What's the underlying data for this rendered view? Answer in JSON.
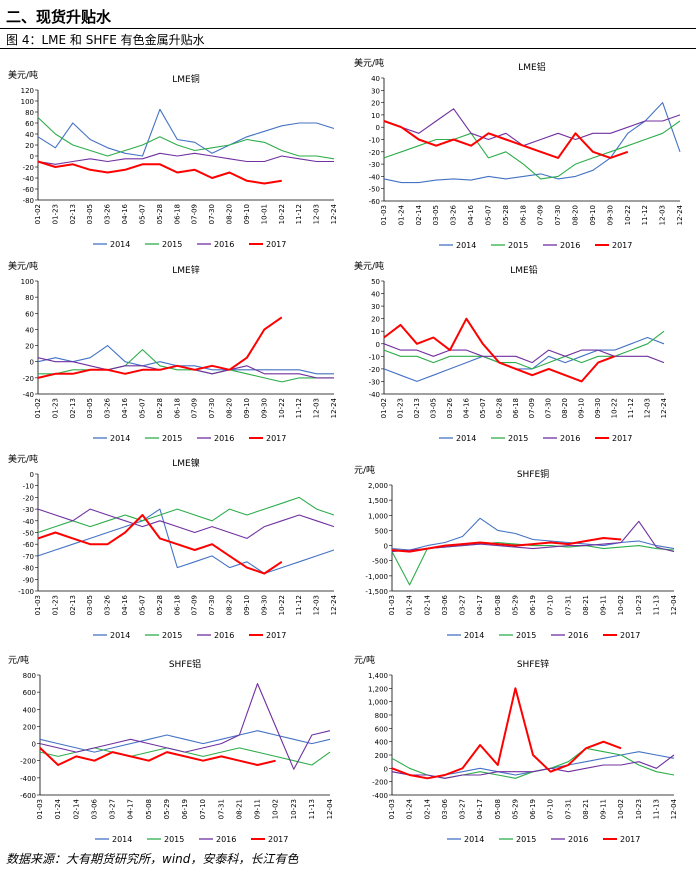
{
  "header": {
    "section_title": "二、现货升贴水",
    "figure_caption": "图 4：LME 和 SHFE 有色金属升贴水"
  },
  "footer": {
    "source": "数据来源：大有期货研究所，wind，安泰科，长江有色"
  },
  "colors": {
    "2014": "#4472C4",
    "2015": "#2EAD4B",
    "2016": "#7030A0",
    "2017": "#FF0000"
  },
  "legend_labels": [
    "2014",
    "2015",
    "2016",
    "2017"
  ],
  "chart_data": [
    {
      "type": "line",
      "title": "LME铜",
      "ylabel": "美元/吨",
      "ylim": [
        -80,
        120
      ],
      "yticks": [
        -80,
        -60,
        -40,
        -20,
        0,
        20,
        40,
        60,
        80,
        100,
        120
      ],
      "categories": [
        "01-02",
        "01-23",
        "02-13",
        "03-05",
        "03-26",
        "04-16",
        "05-07",
        "05-28",
        "06-18",
        "07-09",
        "07-30",
        "08-20",
        "09-10",
        "10-01",
        "10-22",
        "11-12",
        "12-03",
        "12-24"
      ],
      "series": [
        {
          "name": "2014",
          "values": [
            35,
            15,
            60,
            30,
            15,
            5,
            0,
            85,
            30,
            25,
            5,
            20,
            35,
            45,
            55,
            60,
            60,
            50
          ]
        },
        {
          "name": "2015",
          "values": [
            70,
            40,
            20,
            10,
            0,
            10,
            20,
            35,
            20,
            10,
            15,
            20,
            30,
            25,
            10,
            0,
            0,
            -5
          ]
        },
        {
          "name": "2016",
          "values": [
            -10,
            -15,
            -10,
            -5,
            -10,
            -5,
            -5,
            5,
            0,
            5,
            0,
            -5,
            -10,
            -10,
            0,
            -5,
            -10,
            -10
          ]
        },
        {
          "name": "2017",
          "values": [
            -10,
            -20,
            -15,
            -25,
            -30,
            -25,
            -15,
            -15,
            -30,
            -25,
            -40,
            -30,
            -45,
            -50,
            -45,
            null,
            null,
            null
          ]
        }
      ]
    },
    {
      "type": "line",
      "title": "LME铝",
      "ylabel": "美元/吨",
      "ylim": [
        -60,
        40
      ],
      "yticks": [
        -60,
        -50,
        -40,
        -30,
        -20,
        -10,
        0,
        10,
        20,
        30,
        40
      ],
      "categories": [
        "01-03",
        "01-24",
        "02-14",
        "03-05",
        "03-26",
        "04-16",
        "05-07",
        "05-28",
        "06-18",
        "07-09",
        "07-30",
        "08-20",
        "09-10",
        "09-30",
        "10-22",
        "11-12",
        "12-03",
        "12-24"
      ],
      "series": [
        {
          "name": "2014",
          "values": [
            -42,
            -45,
            -45,
            -43,
            -42,
            -43,
            -40,
            -42,
            -40,
            -38,
            -42,
            -40,
            -35,
            -25,
            -5,
            5,
            20,
            -20
          ]
        },
        {
          "name": "2015",
          "values": [
            -25,
            -20,
            -15,
            -10,
            -10,
            -5,
            -25,
            -20,
            -30,
            -42,
            -40,
            -30,
            -25,
            -20,
            -15,
            -10,
            -5,
            5
          ]
        },
        {
          "name": "2016",
          "values": [
            5,
            0,
            -5,
            5,
            15,
            -5,
            -10,
            -5,
            -15,
            -10,
            -5,
            -10,
            -5,
            -5,
            0,
            5,
            5,
            10
          ]
        },
        {
          "name": "2017",
          "values": [
            5,
            0,
            -10,
            -15,
            -10,
            -15,
            -5,
            -10,
            -15,
            -20,
            -25,
            -5,
            -20,
            -25,
            -20,
            null,
            null,
            null
          ]
        }
      ]
    },
    {
      "type": "line",
      "title": "LME锌",
      "ylabel": "美元/吨",
      "ylim": [
        -40,
        100
      ],
      "yticks": [
        -40,
        -20,
        0,
        20,
        40,
        60,
        80,
        100
      ],
      "categories": [
        "01-02",
        "01-23",
        "02-13",
        "03-05",
        "03-26",
        "04-16",
        "05-07",
        "05-28",
        "06-18",
        "07-09",
        "07-30",
        "08-20",
        "09-10",
        "09-30",
        "10-22",
        "11-12",
        "12-03",
        "12-24"
      ],
      "series": [
        {
          "name": "2014",
          "values": [
            0,
            5,
            0,
            5,
            20,
            0,
            -5,
            0,
            -5,
            -5,
            -10,
            -10,
            -10,
            -10,
            -10,
            -10,
            -15,
            -15
          ]
        },
        {
          "name": "2015",
          "values": [
            -15,
            -15,
            -10,
            -10,
            -10,
            -5,
            15,
            -5,
            -10,
            -10,
            -15,
            -10,
            -15,
            -20,
            -25,
            -20,
            -20,
            -20
          ]
        },
        {
          "name": "2016",
          "values": [
            5,
            0,
            0,
            -5,
            -10,
            -5,
            -5,
            -10,
            -5,
            -10,
            -15,
            -10,
            -5,
            -15,
            -15,
            -15,
            -20,
            -20
          ]
        },
        {
          "name": "2017",
          "values": [
            -20,
            -15,
            -15,
            -10,
            -10,
            -15,
            -10,
            -10,
            -5,
            -10,
            -5,
            -10,
            5,
            40,
            55,
            null,
            null,
            null
          ]
        }
      ]
    },
    {
      "type": "line",
      "title": "LME铅",
      "ylabel": "美元/吨",
      "ylim": [
        -40,
        50
      ],
      "yticks": [
        -40,
        -30,
        -20,
        -10,
        0,
        10,
        20,
        30,
        40,
        50
      ],
      "categories": [
        "01-02",
        "01-23",
        "02-13",
        "03-05",
        "03-26",
        "04-16",
        "05-07",
        "05-28",
        "06-18",
        "07-09",
        "07-30",
        "08-20",
        "09-10",
        "09-30",
        "10-22",
        "11-12",
        "12-03",
        "12-24"
      ],
      "series": [
        {
          "name": "2014",
          "values": [
            -20,
            -25,
            -30,
            -25,
            -20,
            -15,
            -10,
            -15,
            -20,
            -20,
            -10,
            -15,
            -10,
            -5,
            -5,
            0,
            5,
            0
          ]
        },
        {
          "name": "2015",
          "values": [
            -5,
            -10,
            -10,
            -15,
            -10,
            -10,
            -10,
            -15,
            -15,
            -20,
            -15,
            -10,
            -15,
            -10,
            -10,
            -5,
            0,
            10
          ]
        },
        {
          "name": "2016",
          "values": [
            0,
            -5,
            -5,
            -10,
            -5,
            -5,
            -10,
            -10,
            -10,
            -15,
            -5,
            -10,
            -5,
            -5,
            -10,
            -10,
            -10,
            -15
          ]
        },
        {
          "name": "2017",
          "values": [
            5,
            15,
            0,
            5,
            -5,
            20,
            0,
            -15,
            -20,
            -25,
            -20,
            -25,
            -30,
            -15,
            -10,
            null,
            null,
            null
          ]
        }
      ]
    },
    {
      "type": "line",
      "title": "LME镍",
      "ylabel": "美元/吨",
      "ylim": [
        -100,
        0
      ],
      "yticks": [
        -100,
        -90,
        -80,
        -70,
        -60,
        -50,
        -40,
        -30,
        -20,
        -10,
        0
      ],
      "categories": [
        "01-03",
        "01-23",
        "02-13",
        "03-05",
        "03-26",
        "04-16",
        "05-07",
        "05-28",
        "06-18",
        "07-09",
        "07-30",
        "08-20",
        "09-10",
        "09-30",
        "10-22",
        "11-12",
        "12-03",
        "12-24"
      ],
      "series": [
        {
          "name": "2014",
          "values": [
            -70,
            -65,
            -60,
            -55,
            -50,
            -45,
            -40,
            -30,
            -80,
            -75,
            -70,
            -80,
            -75,
            -85,
            -80,
            -75,
            -70,
            -65
          ]
        },
        {
          "name": "2015",
          "values": [
            -50,
            -45,
            -40,
            -45,
            -40,
            -35,
            -40,
            -35,
            -30,
            -35,
            -40,
            -30,
            -35,
            -30,
            -25,
            -20,
            -30,
            -35
          ]
        },
        {
          "name": "2016",
          "values": [
            -30,
            -35,
            -40,
            -30,
            -35,
            -40,
            -45,
            -40,
            -45,
            -50,
            -45,
            -50,
            -55,
            -45,
            -40,
            -35,
            -40,
            -45
          ]
        },
        {
          "name": "2017",
          "values": [
            -55,
            -50,
            -55,
            -60,
            -60,
            -50,
            -35,
            -55,
            -60,
            -65,
            -60,
            -70,
            -80,
            -85,
            -75,
            null,
            null,
            null
          ]
        }
      ]
    },
    {
      "type": "line",
      "title": "SHFE铜",
      "ylabel": "元/吨",
      "ylim": [
        -1500,
        2000
      ],
      "yticks": [
        -1500,
        -1000,
        -500,
        0,
        500,
        1000,
        1500,
        2000
      ],
      "yticklabels": [
        "-1,500",
        "-1,000",
        "-500",
        "0",
        "500",
        "1,000",
        "1,500",
        "2,000"
      ],
      "categories": [
        "01-03",
        "01-24",
        "02-14",
        "03-06",
        "03-27",
        "04-17",
        "05-08",
        "05-29",
        "06-19",
        "07-10",
        "07-31",
        "08-21",
        "09-11",
        "10-02",
        "10-23",
        "11-13",
        "12-04"
      ],
      "series": [
        {
          "name": "2014",
          "values": [
            -100,
            -150,
            0,
            100,
            300,
            900,
            500,
            400,
            200,
            150,
            100,
            50,
            0,
            100,
            150,
            0,
            -100
          ]
        },
        {
          "name": "2015",
          "values": [
            -200,
            -1300,
            -100,
            -50,
            0,
            50,
            100,
            50,
            0,
            0,
            -50,
            0,
            -100,
            -50,
            0,
            -100,
            -150
          ]
        },
        {
          "name": "2016",
          "values": [
            -200,
            -150,
            -100,
            -50,
            0,
            50,
            0,
            -50,
            -100,
            -50,
            0,
            0,
            50,
            100,
            800,
            -50,
            -200
          ]
        },
        {
          "name": "2017",
          "values": [
            -150,
            -200,
            -100,
            0,
            50,
            100,
            50,
            0,
            50,
            100,
            50,
            150,
            250,
            200,
            null,
            null,
            null
          ]
        }
      ]
    },
    {
      "type": "line",
      "title": "SHFE铝",
      "ylabel": "元/吨",
      "ylim": [
        -600,
        800
      ],
      "yticks": [
        -600,
        -400,
        -200,
        0,
        200,
        400,
        600,
        800
      ],
      "categories": [
        "01-03",
        "01-24",
        "02-14",
        "03-06",
        "03-27",
        "04-17",
        "05-08",
        "05-29",
        "06-19",
        "07-10",
        "07-31",
        "08-21",
        "09-11",
        "10-02",
        "10-23",
        "11-13",
        "12-04"
      ],
      "series": [
        {
          "name": "2014",
          "values": [
            50,
            0,
            -50,
            -100,
            -50,
            0,
            50,
            100,
            50,
            0,
            50,
            100,
            150,
            100,
            50,
            0,
            50
          ]
        },
        {
          "name": "2015",
          "values": [
            -100,
            -150,
            -100,
            -50,
            -100,
            -150,
            -100,
            -50,
            -100,
            -150,
            -100,
            -50,
            -100,
            -150,
            -200,
            -250,
            -100
          ]
        },
        {
          "name": "2016",
          "values": [
            0,
            -50,
            -100,
            -50,
            0,
            50,
            0,
            -50,
            -100,
            -50,
            0,
            100,
            700,
            200,
            -300,
            100,
            150
          ]
        },
        {
          "name": "2017",
          "values": [
            -50,
            -250,
            -150,
            -200,
            -100,
            -150,
            -200,
            -100,
            -150,
            -200,
            -150,
            -200,
            -250,
            -200,
            null,
            null,
            null
          ]
        }
      ]
    },
    {
      "type": "line",
      "title": "SHFE锌",
      "ylabel": "元/吨",
      "ylim": [
        -400,
        1400
      ],
      "yticks": [
        -400,
        -200,
        0,
        200,
        400,
        600,
        800,
        1000,
        1200,
        1400
      ],
      "yticklabels": [
        "-400",
        "-200",
        "0",
        "200",
        "400",
        "600",
        "800",
        "1,000",
        "1,200",
        "1,400"
      ],
      "categories": [
        "01-03",
        "01-24",
        "02-14",
        "03-06",
        "03-27",
        "04-17",
        "05-08",
        "05-29",
        "06-19",
        "07-10",
        "07-31",
        "08-21",
        "09-11",
        "10-02",
        "10-23",
        "11-13",
        "12-04"
      ],
      "series": [
        {
          "name": "2014",
          "values": [
            -50,
            -100,
            -150,
            -100,
            -50,
            0,
            -50,
            -100,
            -50,
            0,
            50,
            100,
            150,
            200,
            250,
            200,
            150
          ]
        },
        {
          "name": "2015",
          "values": [
            150,
            0,
            -100,
            -150,
            -100,
            -50,
            -100,
            -150,
            -50,
            0,
            100,
            300,
            250,
            200,
            50,
            -50,
            -100
          ]
        },
        {
          "name": "2016",
          "values": [
            -50,
            -100,
            -100,
            -150,
            -100,
            -100,
            -50,
            -50,
            -50,
            0,
            -50,
            0,
            50,
            50,
            100,
            0,
            200
          ]
        },
        {
          "name": "2017",
          "values": [
            0,
            -100,
            -150,
            -100,
            0,
            350,
            50,
            1200,
            200,
            -50,
            50,
            300,
            400,
            300,
            null,
            null,
            null
          ]
        }
      ]
    }
  ]
}
